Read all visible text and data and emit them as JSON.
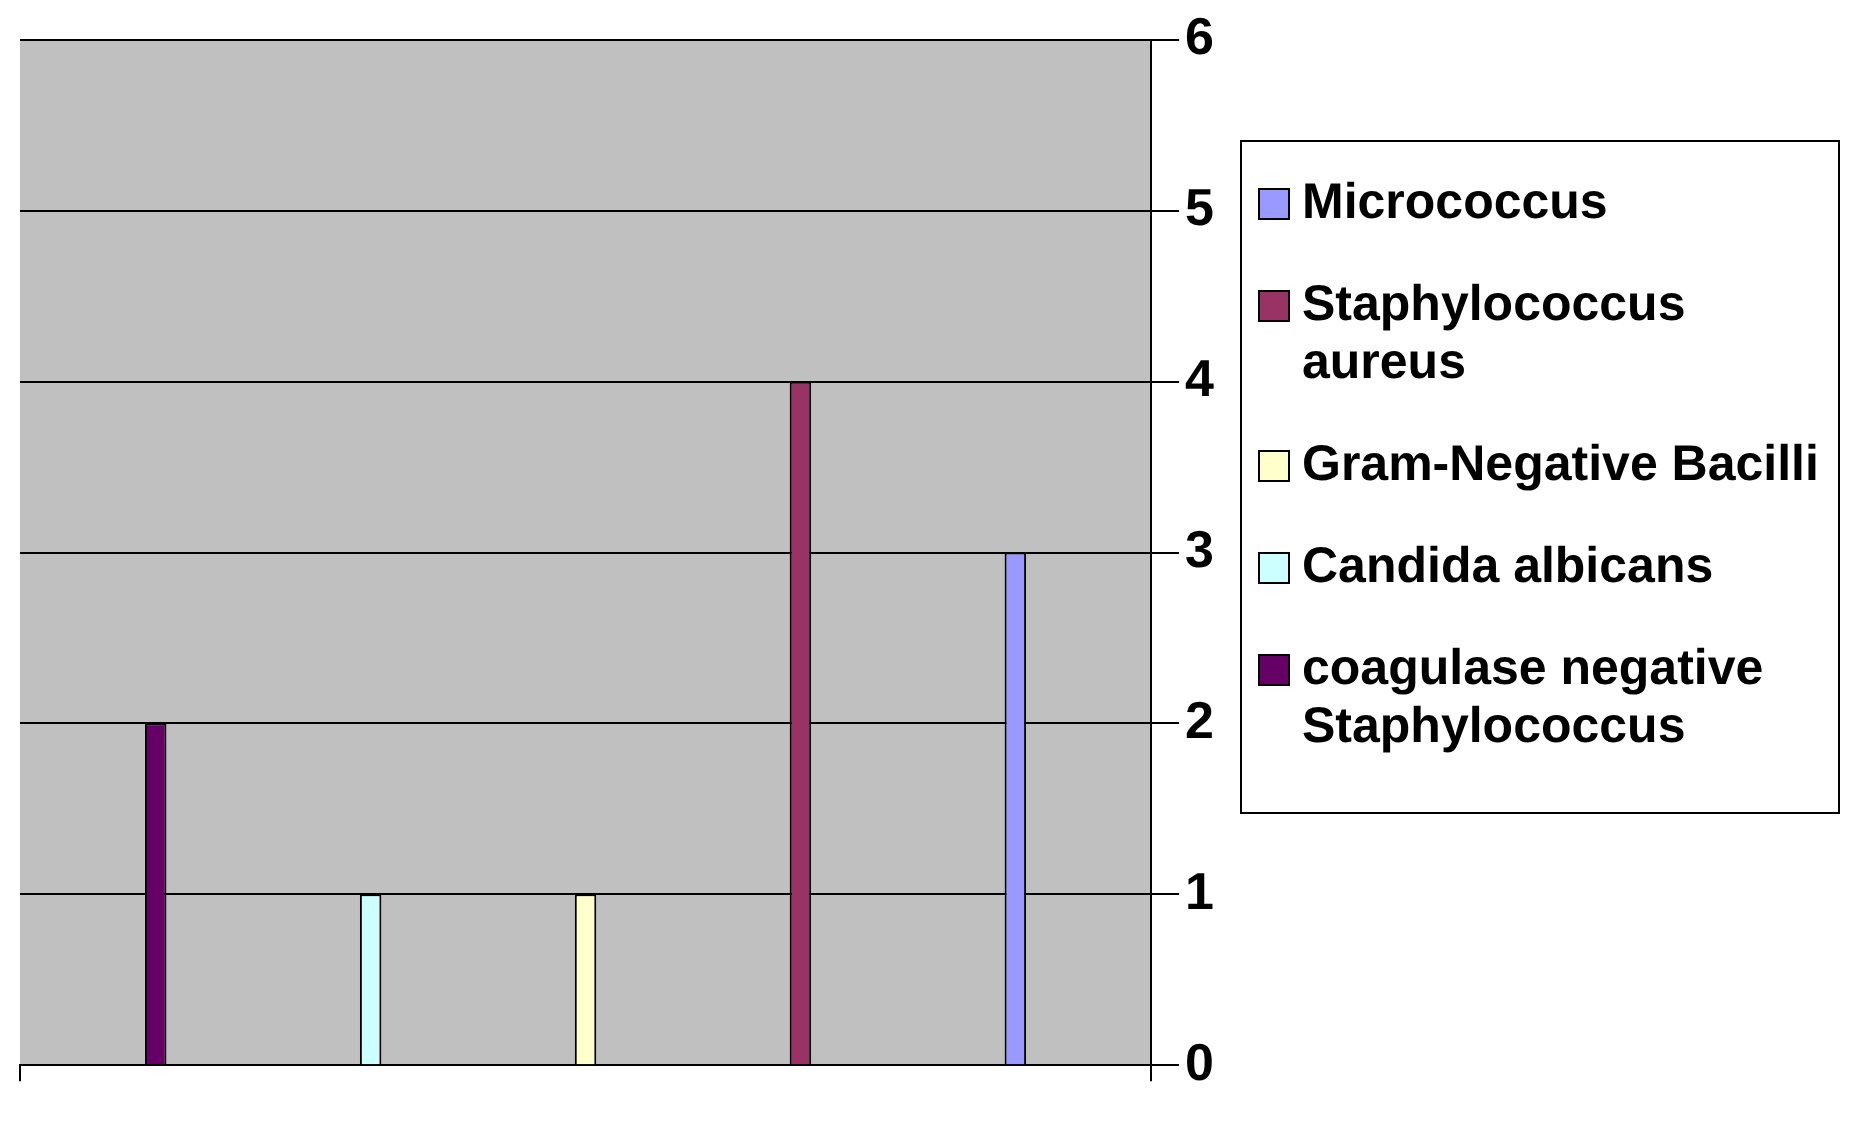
{
  "chart_data": {
    "type": "bar",
    "categories": [
      null
    ],
    "series": [
      {
        "name": "coagulase negative Staphylococcus",
        "color": "#660066",
        "values": [
          2
        ]
      },
      {
        "name": "Candida albicans",
        "color": "#ccffff",
        "values": [
          1
        ]
      },
      {
        "name": "Gram-Negative Bacilli",
        "color": "#ffffcc",
        "values": [
          1
        ]
      },
      {
        "name": "Staphylococcus aureus",
        "color": "#993366",
        "values": [
          4
        ]
      },
      {
        "name": "Micrococcus",
        "color": "#9999ff",
        "values": [
          3
        ]
      }
    ],
    "ylim": [
      0,
      6
    ],
    "yticks": [
      0,
      1,
      2,
      3,
      4,
      5,
      6
    ],
    "grid": true,
    "legend": "right"
  }
}
